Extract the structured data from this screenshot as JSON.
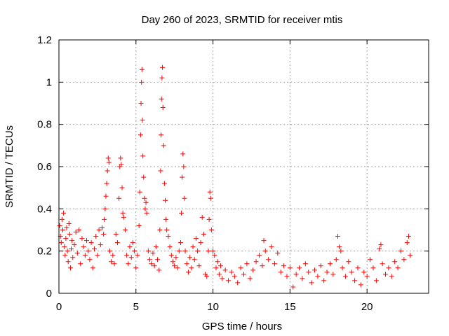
{
  "chart_data": {
    "type": "scatter",
    "title": "Day 260 of 2023, SRMTID for receiver mtis",
    "xlabel": "GPS time / hours",
    "ylabel": "SRMTID / TECUs",
    "xlim": [
      0,
      24
    ],
    "ylim": [
      0,
      1.2
    ],
    "xticks": [
      0,
      5,
      10,
      15,
      20
    ],
    "xtick_labels": [
      "0",
      "5",
      "10",
      "15",
      "20"
    ],
    "yticks": [
      0,
      0.2,
      0.4,
      0.6,
      0.8,
      1,
      1.2
    ],
    "ytick_labels": [
      "0",
      "0.2",
      "0.4",
      "0.6",
      "0.8",
      "1",
      "1.2"
    ],
    "grid": true,
    "marker": "+",
    "color": "#ff0000",
    "series": [
      {
        "name": "SRMTID",
        "points": [
          [
            0.05,
            0.32
          ],
          [
            0.1,
            0.27
          ],
          [
            0.15,
            0.24
          ],
          [
            0.2,
            0.35
          ],
          [
            0.25,
            0.3
          ],
          [
            0.3,
            0.38
          ],
          [
            0.35,
            0.22
          ],
          [
            0.4,
            0.18
          ],
          [
            0.45,
            0.26
          ],
          [
            0.5,
            0.31
          ],
          [
            0.55,
            0.2
          ],
          [
            0.6,
            0.15
          ],
          [
            0.65,
            0.33
          ],
          [
            0.7,
            0.28
          ],
          [
            0.75,
            0.12
          ],
          [
            0.8,
            0.21
          ],
          [
            0.85,
            0.25
          ],
          [
            0.9,
            0.17
          ],
          [
            1.0,
            0.23
          ],
          [
            1.1,
            0.29
          ],
          [
            1.2,
            0.19
          ],
          [
            1.3,
            0.3
          ],
          [
            1.4,
            0.14
          ],
          [
            1.5,
            0.26
          ],
          [
            1.6,
            0.22
          ],
          [
            1.7,
            0.18
          ],
          [
            1.8,
            0.25
          ],
          [
            1.9,
            0.2
          ],
          [
            2.0,
            0.16
          ],
          [
            2.1,
            0.24
          ],
          [
            2.2,
            0.12
          ],
          [
            2.3,
            0.21
          ],
          [
            2.4,
            0.27
          ],
          [
            2.5,
            0.18
          ],
          [
            2.6,
            0.3
          ],
          [
            2.7,
            0.23
          ],
          [
            2.8,
            0.31
          ],
          [
            2.9,
            0.28
          ],
          [
            2.95,
            0.35
          ],
          [
            3.0,
            0.4
          ],
          [
            3.05,
            0.46
          ],
          [
            3.1,
            0.52
          ],
          [
            3.15,
            0.58
          ],
          [
            3.2,
            0.64
          ],
          [
            3.25,
            0.62
          ],
          [
            3.3,
            0.2
          ],
          [
            3.4,
            0.15
          ],
          [
            3.5,
            0.18
          ],
          [
            3.6,
            0.14
          ],
          [
            3.7,
            0.28
          ],
          [
            3.8,
            0.24
          ],
          [
            3.9,
            0.45
          ],
          [
            3.95,
            0.6
          ],
          [
            4.0,
            0.64
          ],
          [
            4.05,
            0.61
          ],
          [
            4.1,
            0.5
          ],
          [
            4.15,
            0.38
          ],
          [
            4.2,
            0.36
          ],
          [
            4.3,
            0.3
          ],
          [
            4.4,
            0.18
          ],
          [
            4.5,
            0.14
          ],
          [
            4.6,
            0.22
          ],
          [
            4.7,
            0.17
          ],
          [
            4.8,
            0.24
          ],
          [
            4.9,
            0.2
          ],
          [
            5.0,
            0.12
          ],
          [
            5.1,
            0.18
          ],
          [
            5.2,
            0.32
          ],
          [
            5.25,
            0.48
          ],
          [
            5.3,
            0.75
          ],
          [
            5.33,
            0.9
          ],
          [
            5.36,
            1.0
          ],
          [
            5.39,
            1.06
          ],
          [
            5.42,
            0.82
          ],
          [
            5.45,
            0.65
          ],
          [
            5.5,
            0.55
          ],
          [
            5.55,
            0.45
          ],
          [
            5.6,
            0.4
          ],
          [
            5.65,
            0.43
          ],
          [
            5.7,
            0.38
          ],
          [
            5.8,
            0.2
          ],
          [
            5.9,
            0.16
          ],
          [
            6.0,
            0.14
          ],
          [
            6.1,
            0.19
          ],
          [
            6.2,
            0.13
          ],
          [
            6.3,
            0.22
          ],
          [
            6.4,
            0.16
          ],
          [
            6.5,
            0.11
          ],
          [
            6.55,
            0.3
          ],
          [
            6.6,
            0.58
          ],
          [
            6.63,
            0.75
          ],
          [
            6.66,
            0.92
          ],
          [
            6.69,
            1.02
          ],
          [
            6.72,
            1.07
          ],
          [
            6.75,
            0.88
          ],
          [
            6.8,
            0.7
          ],
          [
            6.85,
            0.52
          ],
          [
            6.9,
            0.44
          ],
          [
            6.95,
            0.35
          ],
          [
            7.0,
            0.3
          ],
          [
            7.1,
            0.27
          ],
          [
            7.2,
            0.22
          ],
          [
            7.3,
            0.18
          ],
          [
            7.4,
            0.15
          ],
          [
            7.5,
            0.13
          ],
          [
            7.6,
            0.17
          ],
          [
            7.7,
            0.12
          ],
          [
            7.8,
            0.2
          ],
          [
            7.9,
            0.24
          ],
          [
            7.95,
            0.38
          ],
          [
            8.0,
            0.55
          ],
          [
            8.05,
            0.66
          ],
          [
            8.1,
            0.6
          ],
          [
            8.15,
            0.45
          ],
          [
            8.2,
            0.2
          ],
          [
            8.3,
            0.14
          ],
          [
            8.4,
            0.1
          ],
          [
            8.5,
            0.17
          ],
          [
            8.6,
            0.12
          ],
          [
            8.7,
            0.22
          ],
          [
            8.8,
            0.16
          ],
          [
            8.9,
            0.26
          ],
          [
            9.0,
            0.2
          ],
          [
            9.1,
            0.13
          ],
          [
            9.2,
            0.24
          ],
          [
            9.3,
            0.36
          ],
          [
            9.4,
            0.28
          ],
          [
            9.5,
            0.09
          ],
          [
            9.6,
            0.08
          ],
          [
            9.7,
            0.2
          ],
          [
            9.75,
            0.35
          ],
          [
            9.8,
            0.48
          ],
          [
            9.85,
            0.45
          ],
          [
            9.9,
            0.3
          ],
          [
            10.0,
            0.2
          ],
          [
            10.1,
            0.18
          ],
          [
            10.2,
            0.12
          ],
          [
            10.3,
            0.15
          ],
          [
            10.4,
            0.09
          ],
          [
            10.5,
            0.13
          ],
          [
            10.6,
            0.07
          ],
          [
            10.8,
            0.11
          ],
          [
            11.0,
            0.06
          ],
          [
            11.2,
            0.1
          ],
          [
            11.4,
            0.08
          ],
          [
            11.6,
            0.05
          ],
          [
            11.8,
            0.12
          ],
          [
            12.0,
            0.09
          ],
          [
            12.2,
            0.14
          ],
          [
            12.4,
            0.07
          ],
          [
            12.6,
            0.11
          ],
          [
            12.8,
            0.15
          ],
          [
            13.0,
            0.18
          ],
          [
            13.2,
            0.13
          ],
          [
            13.3,
            0.25
          ],
          [
            13.4,
            0.2
          ],
          [
            13.6,
            0.16
          ],
          [
            13.8,
            0.22
          ],
          [
            14.0,
            0.14
          ],
          [
            14.2,
            0.19
          ],
          [
            14.4,
            0.1
          ],
          [
            14.6,
            0.13
          ],
          [
            14.8,
            0.08
          ],
          [
            15.0,
            0.12
          ],
          [
            15.2,
            0.03
          ],
          [
            15.4,
            0.09
          ],
          [
            15.6,
            0.12
          ],
          [
            15.8,
            0.07
          ],
          [
            16.0,
            0.14
          ],
          [
            16.2,
            0.1
          ],
          [
            16.4,
            0.05
          ],
          [
            16.6,
            0.11
          ],
          [
            16.8,
            0.08
          ],
          [
            17.0,
            0.13
          ],
          [
            17.2,
            0.06
          ],
          [
            17.4,
            0.1
          ],
          [
            17.6,
            0.14
          ],
          [
            17.8,
            0.09
          ],
          [
            18.0,
            0.16
          ],
          [
            18.1,
            0.27
          ],
          [
            18.2,
            0.22
          ],
          [
            18.3,
            0.2
          ],
          [
            18.4,
            0.12
          ],
          [
            18.6,
            0.08
          ],
          [
            18.8,
            0.15
          ],
          [
            19.0,
            0.1
          ],
          [
            19.2,
            0.06
          ],
          [
            19.4,
            0.12
          ],
          [
            19.6,
            0.04
          ],
          [
            19.8,
            0.1
          ],
          [
            20.0,
            0.08
          ],
          [
            20.2,
            0.16
          ],
          [
            20.4,
            0.12
          ],
          [
            20.6,
            0.06
          ],
          [
            20.8,
            0.21
          ],
          [
            20.9,
            0.23
          ],
          [
            21.0,
            0.14
          ],
          [
            21.2,
            0.09
          ],
          [
            21.4,
            0.12
          ],
          [
            21.6,
            0.08
          ],
          [
            21.8,
            0.15
          ],
          [
            22.0,
            0.12
          ],
          [
            22.2,
            0.2
          ],
          [
            22.4,
            0.16
          ],
          [
            22.6,
            0.24
          ],
          [
            22.7,
            0.27
          ],
          [
            22.8,
            0.18
          ]
        ]
      }
    ]
  }
}
